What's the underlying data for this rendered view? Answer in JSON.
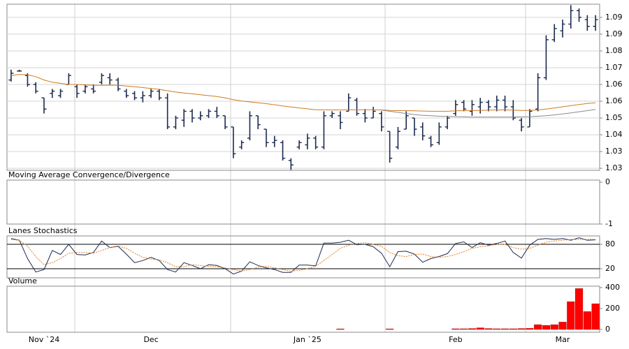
{
  "chart_data": [
    {
      "type": "ohlc",
      "color": "#1c2a4f",
      "open": [
        1.066,
        1.07,
        1.068,
        1.064,
        1.058,
        1.06,
        1.059,
        1.064,
        1.063,
        1.061,
        1.062,
        1.065,
        1.067,
        1.066,
        1.061,
        1.06,
        1.058,
        1.059,
        1.061,
        1.058,
        1.045,
        1.048,
        1.052,
        1.049,
        1.05,
        1.052,
        1.05,
        1.045,
        1.036,
        1.04,
        1.05,
        1.044,
        1.038,
        1.038,
        1.03,
        1.036,
        1.037,
        1.04,
        1.036,
        1.05,
        1.05,
        1.052,
        1.057,
        1.051,
        1.049,
        1.051,
        1.043,
        1.036,
        1.044,
        1.049,
        1.045,
        1.04,
        1.038,
        1.045,
        1.051,
        1.056,
        1.052,
        1.054,
        1.056,
        1.054,
        1.057,
        1.054,
        1.048,
        1.045,
        1.053,
        1.067,
        1.084,
        1.088,
        1.091,
        1.097,
        1.093,
        1.09
      ],
      "high": [
        1.0706,
        1.0706,
        1.069,
        1.065,
        1.058,
        1.062,
        1.062,
        1.069,
        1.064,
        1.064,
        1.064,
        1.069,
        1.069,
        1.067,
        1.062,
        1.061,
        1.061,
        1.062,
        1.062,
        1.06,
        1.05,
        1.053,
        1.053,
        1.052,
        1.053,
        1.054,
        1.05,
        1.045,
        1.039,
        1.052,
        1.05,
        1.044,
        1.041,
        1.039,
        1.031,
        1.039,
        1.042,
        1.041,
        1.052,
        1.052,
        1.052,
        1.06,
        1.058,
        1.053,
        1.054,
        1.052,
        1.043,
        1.045,
        1.052,
        1.049,
        1.047,
        1.041,
        1.047,
        1.05,
        1.057,
        1.057,
        1.057,
        1.058,
        1.057,
        1.059,
        1.059,
        1.057,
        1.049,
        1.053,
        1.069,
        1.086,
        1.091,
        1.093,
        1.0995,
        1.098,
        1.095,
        1.095
      ],
      "low": [
        1.0653,
        1.0697,
        1.063,
        1.06,
        1.051,
        1.058,
        1.058,
        1.064,
        1.058,
        1.06,
        1.06,
        1.064,
        1.064,
        1.061,
        1.058,
        1.057,
        1.056,
        1.058,
        1.057,
        1.044,
        1.044,
        1.045,
        1.047,
        1.048,
        1.049,
        1.049,
        1.044,
        1.031,
        1.035,
        1.039,
        1.044,
        1.036,
        1.036,
        1.03,
        1.0258,
        1.035,
        1.035,
        1.035,
        1.035,
        1.049,
        1.044,
        1.052,
        1.05,
        1.047,
        1.049,
        1.043,
        1.029,
        1.035,
        1.044,
        1.041,
        1.039,
        1.036,
        1.037,
        1.044,
        1.05,
        1.052,
        1.05,
        1.051,
        1.052,
        1.052,
        1.052,
        1.048,
        1.043,
        1.045,
        1.052,
        1.066,
        1.083,
        1.085,
        1.089,
        1.092,
        1.088,
        1.088
      ],
      "close": [
        1.069,
        1.07,
        1.064,
        1.061,
        1.053,
        1.061,
        1.061,
        1.068,
        1.06,
        1.063,
        1.061,
        1.068,
        1.066,
        1.062,
        1.059,
        1.058,
        1.059,
        1.061,
        1.058,
        1.045,
        1.049,
        1.052,
        1.049,
        1.05,
        1.052,
        1.05,
        1.045,
        1.033,
        1.038,
        1.05,
        1.046,
        1.038,
        1.039,
        1.031,
        1.028,
        1.038,
        1.04,
        1.036,
        1.05,
        1.051,
        1.047,
        1.058,
        1.051,
        1.049,
        1.052,
        1.045,
        1.031,
        1.043,
        1.05,
        1.044,
        1.041,
        1.037,
        1.045,
        1.049,
        1.055,
        1.053,
        1.055,
        1.056,
        1.054,
        1.057,
        1.054,
        1.049,
        1.045,
        1.052,
        1.067,
        1.084,
        1.089,
        1.091,
        1.097,
        1.094,
        1.09,
        1.093
      ],
      "overlays": [
        {
          "color": "#d07a1e",
          "values": [
            1.068,
            1.0685,
            1.0683,
            1.0675,
            1.066,
            1.065,
            1.0645,
            1.064,
            1.064,
            1.0638,
            1.0636,
            1.0636,
            1.0637,
            1.0636,
            1.0633,
            1.063,
            1.0626,
            1.0622,
            1.0618,
            1.0612,
            1.0606,
            1.0602,
            1.0598,
            1.0594,
            1.059,
            1.0586,
            1.058,
            1.0572,
            1.0566,
            1.0562,
            1.0558,
            1.0554,
            1.0549,
            1.0544,
            1.0539,
            1.0535,
            1.0531,
            1.0527,
            1.0527,
            1.0526,
            1.0526,
            1.0527,
            1.0527,
            1.0527,
            1.0527,
            1.0526,
            1.0524,
            1.0523,
            1.0523,
            1.0522,
            1.0521,
            1.052,
            1.052,
            1.052,
            1.0522,
            1.0523,
            1.0524,
            1.0524,
            1.0525,
            1.0526,
            1.0526,
            1.0525,
            1.0524,
            1.0524,
            1.0526,
            1.053,
            1.0535,
            1.054,
            1.0545,
            1.055,
            1.0555,
            1.0558
          ]
        },
        {
          "color": "#8a8a8a",
          "values": [
            null,
            null,
            null,
            null,
            null,
            null,
            null,
            null,
            null,
            null,
            null,
            null,
            null,
            null,
            null,
            null,
            null,
            null,
            null,
            null,
            null,
            null,
            null,
            null,
            null,
            null,
            null,
            null,
            null,
            null,
            null,
            null,
            null,
            null,
            null,
            null,
            null,
            null,
            null,
            null,
            null,
            null,
            null,
            null,
            null,
            1.0525,
            1.052,
            1.0515,
            1.051,
            1.0505,
            1.0502,
            1.05,
            1.0498,
            1.0497,
            1.0496,
            1.0495,
            1.0494,
            1.0494,
            1.0494,
            1.0494,
            1.0494,
            1.0494,
            1.0495,
            1.0496,
            1.0498,
            1.05,
            1.0504,
            1.0508,
            1.0513,
            1.0518,
            1.0523,
            1.0528
          ]
        }
      ],
      "ylim": [
        1.0256,
        1.0999
      ],
      "yticks": [
        {
          "value": 1.0265,
          "label": "1.03"
        },
        {
          "value": 1.034,
          "label": "1.03"
        },
        {
          "value": 1.0415,
          "label": "1.04"
        },
        {
          "value": 1.049,
          "label": "1.05"
        },
        {
          "value": 1.0565,
          "label": "1.06"
        },
        {
          "value": 1.064,
          "label": "1.06"
        },
        {
          "value": 1.0715,
          "label": "1.07"
        },
        {
          "value": 1.079,
          "label": "1.08"
        },
        {
          "value": 1.0865,
          "label": "1.09"
        },
        {
          "value": 1.094,
          "label": "1.09"
        }
      ],
      "grid": true,
      "grid_color": "#d4d4d4"
    },
    {
      "type": "line",
      "title": "Moving Average Convergence/Divergence",
      "ylim": [
        -1,
        0.05
      ],
      "yticks": [
        0,
        -1
      ],
      "grid": false
    },
    {
      "type": "line",
      "title": "Lanes Stochastics",
      "series": [
        {
          "color": "#1c2a4f",
          "style": "solid",
          "values": [
            94,
            90,
            45,
            12,
            18,
            65,
            55,
            80,
            55,
            54,
            60,
            88,
            72,
            75,
            56,
            35,
            40,
            48,
            40,
            18,
            12,
            35,
            28,
            20,
            30,
            28,
            20,
            7,
            14,
            37,
            28,
            22,
            18,
            11,
            11,
            29,
            29,
            27,
            83,
            83,
            85,
            90,
            79,
            80,
            74,
            58,
            25,
            62,
            63,
            56,
            36,
            45,
            50,
            57,
            82,
            86,
            72,
            84,
            78,
            82,
            88,
            60,
            46,
            78,
            92,
            94,
            92,
            94,
            90,
            96,
            90,
            91
          ]
        },
        {
          "color": "#e07b20",
          "style": "dotted",
          "values": [
            92,
            90,
            75,
            50,
            30,
            35,
            45,
            58,
            60,
            60,
            58,
            65,
            72,
            76,
            70,
            58,
            48,
            44,
            42,
            35,
            25,
            25,
            30,
            28,
            26,
            25,
            22,
            18,
            14,
            18,
            24,
            26,
            22,
            18,
            14,
            16,
            20,
            26,
            40,
            55,
            70,
            78,
            82,
            84,
            80,
            75,
            60,
            52,
            50,
            55,
            56,
            50,
            48,
            50,
            55,
            62,
            70,
            74,
            76,
            80,
            80,
            72,
            68,
            70,
            78,
            85,
            88,
            90,
            92,
            92,
            92,
            92
          ]
        }
      ],
      "ylim": [
        -2.3,
        100.6
      ],
      "yticks": [
        20,
        80
      ],
      "grid": true,
      "grid_color": "#000000"
    },
    {
      "type": "bar",
      "title": "Volume",
      "color": "#ff0000",
      "categories": [
        null,
        null,
        null,
        null,
        "Nov `24",
        null,
        null,
        null,
        null,
        null,
        null,
        null,
        null,
        null,
        null,
        null,
        null,
        "Dec",
        null,
        null,
        null,
        null,
        null,
        null,
        null,
        null,
        null,
        null,
        null,
        null,
        null,
        null,
        null,
        null,
        null,
        null,
        "Jan `25",
        null,
        null,
        null,
        null,
        null,
        null,
        null,
        null,
        null,
        null,
        null,
        null,
        null,
        null,
        null,
        null,
        null,
        "Feb",
        null,
        null,
        null,
        null,
        null,
        null,
        null,
        null,
        null,
        null,
        null,
        null,
        "Mar",
        null,
        null,
        null,
        null
      ],
      "values": [
        0,
        0,
        0,
        0,
        0,
        0,
        0,
        0,
        0,
        0,
        0,
        0,
        0,
        0,
        0,
        0,
        0,
        0,
        0,
        0,
        0,
        0,
        0,
        0,
        0,
        0,
        0,
        0,
        0,
        0,
        0,
        0,
        0,
        0,
        0,
        0,
        0,
        0,
        0,
        0,
        5,
        0,
        0,
        0,
        0,
        0,
        5,
        0,
        0,
        0,
        0,
        0,
        0,
        0,
        6,
        6,
        8,
        15,
        8,
        6,
        6,
        6,
        8,
        10,
        45,
        38,
        45,
        70,
        265,
        390,
        170,
        245
      ],
      "ylim": [
        -27,
        413
      ],
      "yticks": [
        0,
        200,
        400
      ],
      "grid": false
    }
  ]
}
